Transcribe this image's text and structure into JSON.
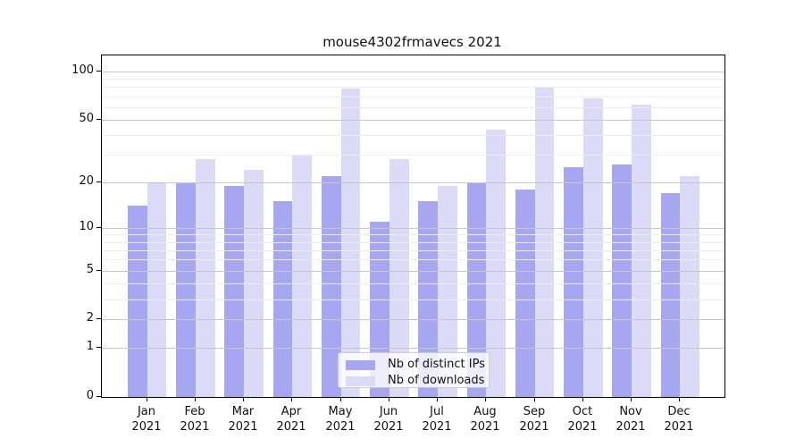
{
  "chart_data": {
    "type": "bar",
    "title": "mouse4302frmavecs 2021",
    "xlabel": "",
    "ylabel": "",
    "categories": [
      "Jan 2021",
      "Feb 2021",
      "Mar 2021",
      "Apr 2021",
      "May 2021",
      "Jun 2021",
      "Jul 2021",
      "Aug 2021",
      "Sep 2021",
      "Oct 2021",
      "Nov 2021",
      "Dec 2021"
    ],
    "series": [
      {
        "name": "Nb of distinct IPs",
        "color": "#a6a6f1",
        "values": [
          14,
          20,
          19,
          15,
          22,
          11,
          15,
          20,
          18,
          25,
          26,
          17
        ]
      },
      {
        "name": "Nb of downloads",
        "color": "#dbdbf7",
        "values": [
          20,
          28,
          24,
          30,
          78,
          28,
          19,
          43,
          80,
          68,
          62,
          22
        ]
      }
    ],
    "yscale": "log1p",
    "ylim": [
      0,
      125.5
    ],
    "yticks": [
      {
        "value": 0,
        "label": "0"
      },
      {
        "value": 1,
        "label": "1"
      },
      {
        "value": 2,
        "label": "2"
      },
      {
        "value": 5,
        "label": "5"
      },
      {
        "value": 10,
        "label": "10"
      },
      {
        "value": 20,
        "label": "20"
      },
      {
        "value": 50,
        "label": "50"
      },
      {
        "value": 100,
        "label": "100"
      }
    ],
    "yticks_minor": [
      3,
      4,
      6,
      7,
      8,
      9,
      30,
      40,
      60,
      70,
      80,
      90
    ],
    "grid": true,
    "grid_above_bars": true,
    "legend_position": "lower center",
    "colors": {
      "grid_major": "#c6c6c6",
      "grid_minor": "#ededed",
      "spine": "#000000",
      "legend_border": "#cccccc",
      "legend_background": "rgba(255,255,255,0.8)"
    }
  }
}
